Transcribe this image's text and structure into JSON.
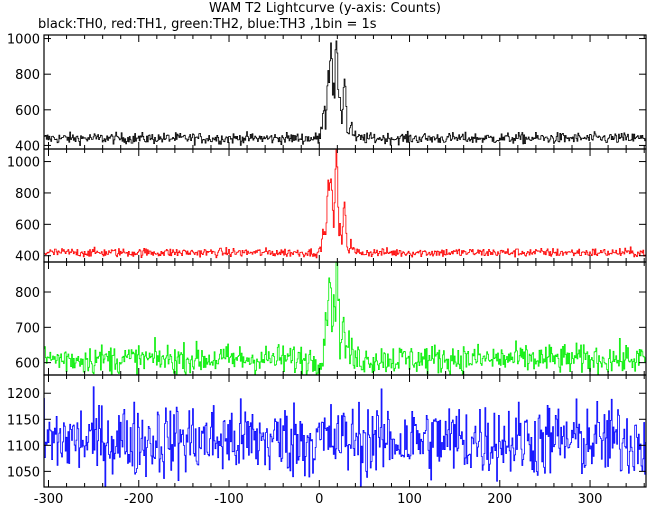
{
  "chart_data": [
    {
      "type": "line",
      "title": "WAM T2 Lightcurve (y-axis: Counts)",
      "subtitle": "black:TH0, red:TH1, green:TH2, blue:TH3 ,1bin = 1s",
      "xlim": [
        -305,
        362
      ],
      "xticks": [
        -300,
        -200,
        -100,
        0,
        100,
        200,
        300
      ],
      "grid": false,
      "series": [
        {
          "name": "TH0",
          "color": "#000000",
          "ylim": [
            380,
            1020
          ],
          "yticks": [
            400,
            600,
            800,
            1000
          ],
          "baseline": 440,
          "noise": 22,
          "peaks": [
            {
              "x": 5,
              "y": 630
            },
            {
              "x": 10,
              "y": 820
            },
            {
              "x": 13,
              "y": 1005
            },
            {
              "x": 16,
              "y": 720
            },
            {
              "x": 19,
              "y": 1000
            },
            {
              "x": 23,
              "y": 660
            },
            {
              "x": 28,
              "y": 800
            },
            {
              "x": 35,
              "y": 520
            }
          ]
        },
        {
          "name": "TH1",
          "color": "#ff0000",
          "ylim": [
            360,
            1080
          ],
          "yticks": [
            400,
            600,
            800,
            1000
          ],
          "baseline": 420,
          "noise": 20,
          "peaks": [
            {
              "x": 5,
              "y": 580
            },
            {
              "x": 10,
              "y": 880
            },
            {
              "x": 13,
              "y": 935
            },
            {
              "x": 17,
              "y": 620
            },
            {
              "x": 19,
              "y": 1075
            },
            {
              "x": 23,
              "y": 570
            },
            {
              "x": 28,
              "y": 730
            },
            {
              "x": 35,
              "y": 480
            }
          ]
        },
        {
          "name": "TH2",
          "color": "#00ee00",
          "ylim": [
            565,
            885
          ],
          "yticks": [
            600,
            700,
            800
          ],
          "baseline": 610,
          "noise": 30,
          "peaks": [
            {
              "x": 8,
              "y": 770
            },
            {
              "x": 12,
              "y": 860
            },
            {
              "x": 16,
              "y": 790
            },
            {
              "x": 20,
              "y": 885
            },
            {
              "x": 26,
              "y": 720
            },
            {
              "x": 32,
              "y": 660
            }
          ]
        },
        {
          "name": "TH3",
          "color": "#0000ff",
          "ylim": [
            1020,
            1235
          ],
          "yticks": [
            1050,
            1100,
            1150,
            1200
          ],
          "baseline": 1110,
          "noise": 52,
          "peaks": []
        }
      ]
    }
  ]
}
